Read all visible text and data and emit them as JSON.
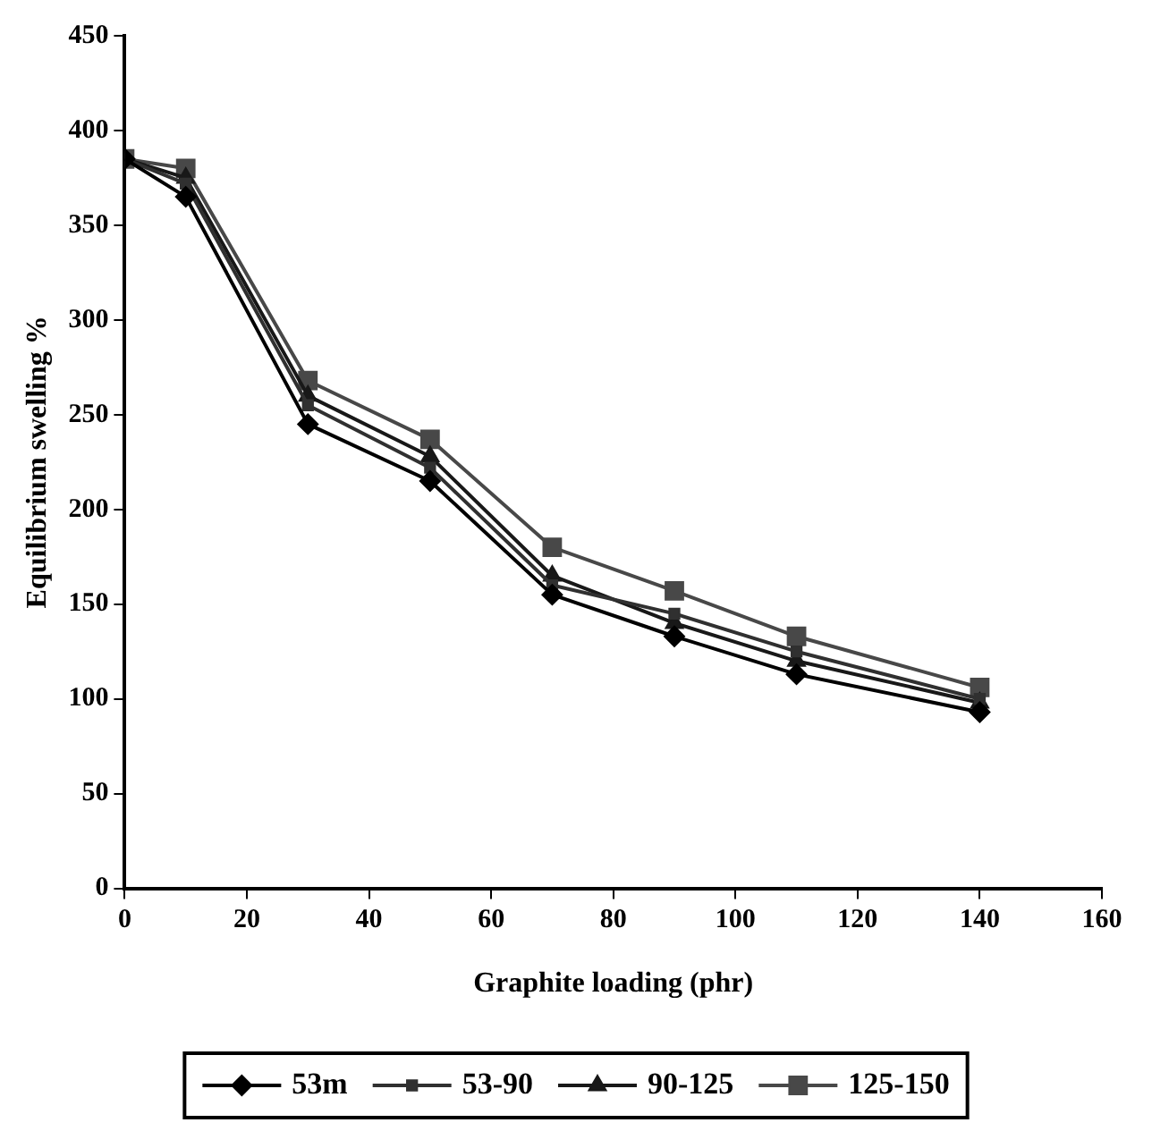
{
  "chart_data": {
    "type": "line",
    "xlabel": "Graphite loading (phr)",
    "ylabel": "Equilibrium swelling %",
    "x": [
      0,
      10,
      30,
      50,
      70,
      90,
      110,
      140
    ],
    "series": [
      {
        "name": "53m",
        "color": "#000000",
        "marker": "diamond",
        "values": [
          385,
          365,
          245,
          215,
          155,
          133,
          113,
          93
        ]
      },
      {
        "name": "53-90",
        "color": "#303030",
        "marker": "square",
        "values": [
          385,
          372,
          255,
          222,
          160,
          145,
          125,
          100
        ]
      },
      {
        "name": "90-125",
        "color": "#181818",
        "marker": "triangle",
        "values": [
          385,
          375,
          260,
          228,
          165,
          140,
          120,
          98
        ]
      },
      {
        "name": "125-150",
        "color": "#484848",
        "marker": "square",
        "values": [
          385,
          380,
          268,
          237,
          180,
          157,
          133,
          106
        ]
      }
    ],
    "xlim": [
      0,
      160
    ],
    "xticks": [
      0,
      20,
      40,
      60,
      80,
      100,
      120,
      140,
      160
    ],
    "ylim": [
      0,
      450
    ],
    "yticks": [
      0,
      50,
      100,
      150,
      200,
      250,
      300,
      350,
      400,
      450
    ],
    "grid": false,
    "legend": "bottom",
    "line_style": "solid"
  }
}
